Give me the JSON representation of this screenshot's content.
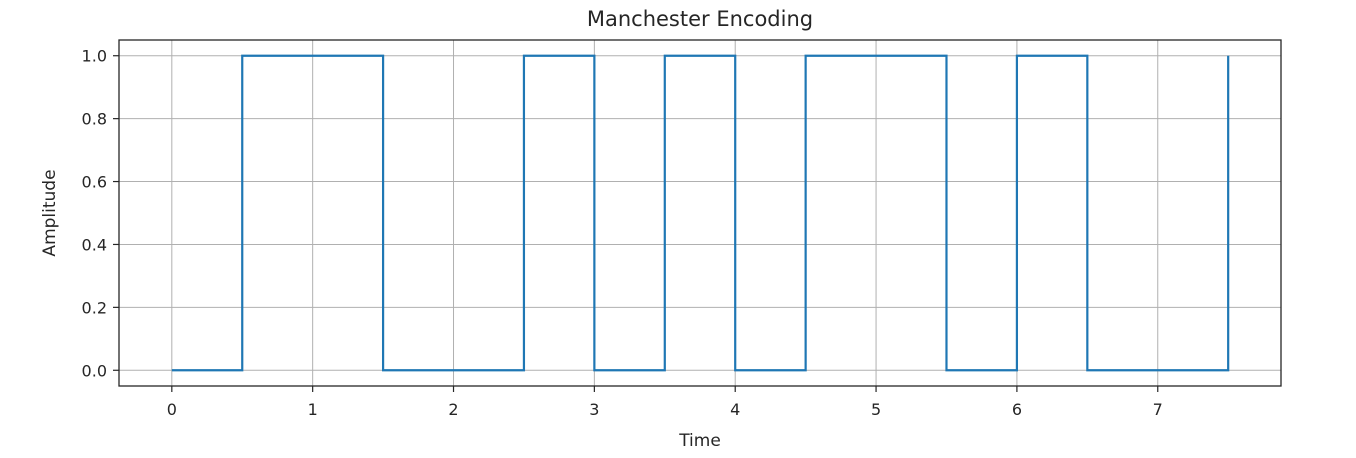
{
  "chart_data": {
    "type": "line",
    "step": "post",
    "title": "Manchester Encoding",
    "xlabel": "Time",
    "ylabel": "Amplitude",
    "xlim": [
      -0.375,
      7.875
    ],
    "ylim": [
      -0.05,
      1.05
    ],
    "xticks": [
      0,
      1,
      2,
      3,
      4,
      5,
      6,
      7
    ],
    "xtick_labels": [
      "0",
      "1",
      "2",
      "3",
      "4",
      "5",
      "6",
      "7"
    ],
    "yticks": [
      0.0,
      0.2,
      0.4,
      0.6,
      0.8,
      1.0
    ],
    "ytick_labels": [
      "0.0",
      "0.2",
      "0.4",
      "0.6",
      "0.8",
      "1.0"
    ],
    "grid": true,
    "series": [
      {
        "color": "#1f77b4",
        "x": [
          0,
          0.5,
          1.0,
          1.5,
          2.0,
          2.5,
          3.0,
          3.5,
          4.0,
          4.5,
          5.0,
          5.5,
          6.0,
          6.5,
          7.0,
          7.5
        ],
        "y": [
          0,
          1,
          1,
          0,
          0,
          1,
          0,
          1,
          0,
          1,
          1,
          0,
          1,
          0,
          0,
          1
        ]
      }
    ]
  }
}
